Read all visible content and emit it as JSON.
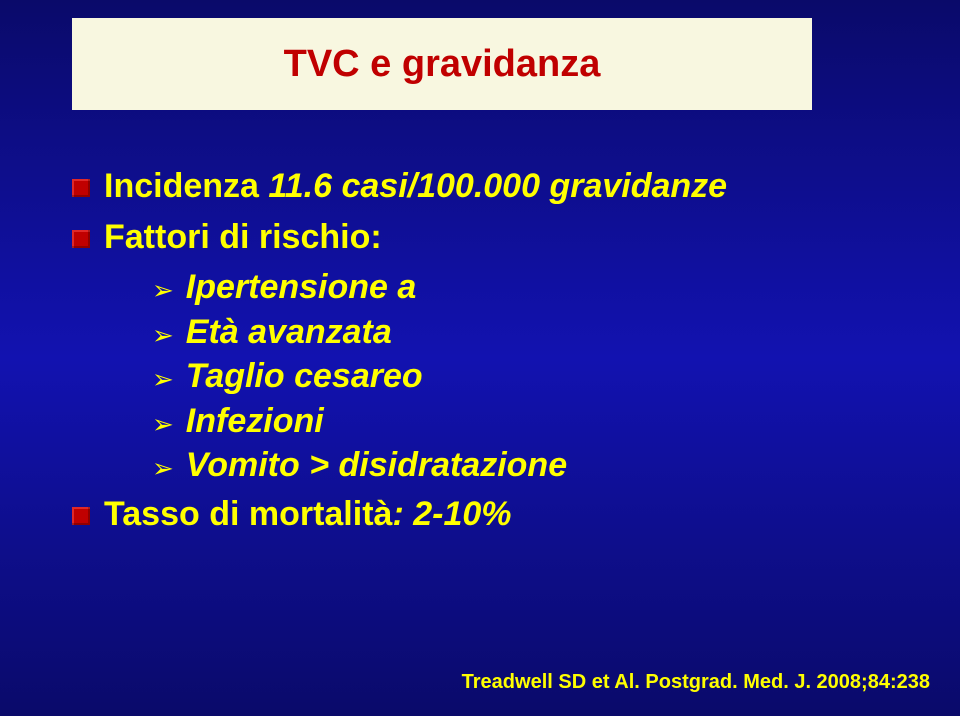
{
  "colors": {
    "background_gradient_top": "#0a0a6a",
    "background_gradient_mid": "#1212b0",
    "title_box_bg": "#f8f7e0",
    "title_text": "#c00000",
    "body_text": "#ffff00",
    "bullet_fill": "#c00000"
  },
  "title": "TVC e gravidanza",
  "bullets": {
    "incidenza": {
      "label": "Incidenza",
      "value": " 11.6 casi/100.000 gravidanze"
    },
    "fattori": {
      "label": "Fattori di rischio:",
      "items": [
        "Ipertensione a",
        "Età avanzata",
        "Taglio cesareo",
        "Infezioni",
        "Vomito > disidratazione"
      ]
    },
    "mortalita": {
      "label": "Tasso di mortalità",
      "value": ": 2-10%"
    }
  },
  "citation": "Treadwell SD et Al. Postgrad. Med. J. 2008;84:238"
}
